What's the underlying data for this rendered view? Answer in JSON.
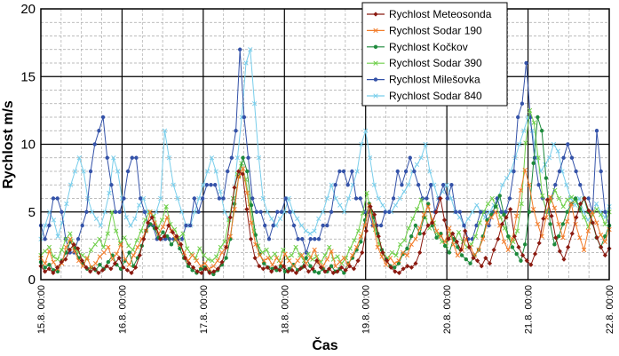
{
  "chart_data": {
    "type": "line",
    "xlabel": "Čas",
    "ylabel": "Rychlost  m/s",
    "ylim": [
      0,
      20
    ],
    "yticks": [
      "0",
      "5",
      "10",
      "15",
      "20"
    ],
    "xticks": [
      "15.8. 00:00",
      "16.8. 00:00",
      "17.8. 00:00",
      "18.8. 00:00",
      "19.8. 00:00",
      "20.8. 00:00",
      "21.8. 00:00",
      "22.8. 00:00"
    ],
    "grid": true,
    "legend_position": "top-right",
    "series": [
      {
        "name": "Rychlost Meteosonda",
        "color": "#8b1a10",
        "marker": "diamond",
        "values": [
          1,
          0.6,
          0.8,
          0.5,
          0.9,
          1.3,
          1.5,
          2.2,
          2.6,
          2.3,
          1.4,
          0.9,
          0.6,
          0.8,
          0.5,
          0.7,
          1,
          0.8,
          1.2,
          1.6,
          0.9,
          0.7,
          0.5,
          0.9,
          1.8,
          3,
          4.2,
          4.6,
          3.8,
          3,
          3.2,
          4,
          3.5,
          3.2,
          2.6,
          1.6,
          1.2,
          0.9,
          0.6,
          0.5,
          0.8,
          0.5,
          0.6,
          0.8,
          1.3,
          2.4,
          4.6,
          6.8,
          8,
          7.8,
          5.2,
          3,
          1.6,
          1,
          0.8,
          0.9,
          0.6,
          0.9,
          0.7,
          1,
          0.6,
          0.7,
          0.5,
          0.8,
          1,
          0.6,
          0.8,
          1.4,
          0.9,
          0.6,
          0.8,
          0.5,
          0.6,
          0.9,
          0.7,
          1,
          0.8,
          1.4,
          2,
          3.6,
          5.4,
          4.8,
          3.2,
          2,
          1.4,
          0.9,
          0.6,
          0.5,
          0.8,
          1,
          0.9,
          1.2,
          2,
          3.4,
          4,
          4.2,
          5,
          6,
          4.4,
          3,
          3.4,
          2.8,
          2.2,
          3.6,
          2.4,
          1.6,
          1.4,
          1,
          1.6,
          1.2,
          2.2,
          3,
          4.1,
          4.6,
          5.2,
          3.2,
          2.4,
          1.8,
          1.4,
          1.1,
          1.9,
          2.7,
          4.5,
          5.9,
          4.7,
          3.1,
          2.1,
          1.5,
          2.4,
          3.4,
          4.6,
          5.6,
          6,
          5.1,
          4.2,
          3.1,
          2.4,
          1.8,
          2.3
        ]
      },
      {
        "name": "Rychlost Sodar 190",
        "color": "#f27c2a",
        "marker": "x",
        "values": [
          1.6,
          1.2,
          2.1,
          1.3,
          0.8,
          1.2,
          2.4,
          3,
          2.1,
          1.4,
          1,
          1.6,
          0.9,
          1.2,
          1.7,
          2,
          2.4,
          1.5,
          1.9,
          2.6,
          1.5,
          1.1,
          1.8,
          2.4,
          3,
          3.6,
          5,
          4.2,
          3.4,
          3.9,
          4.6,
          3.6,
          3,
          2.6,
          2,
          1.4,
          1.8,
          1.4,
          1,
          1.2,
          0.8,
          1,
          1.4,
          2,
          2.4,
          3.2,
          5.2,
          7.6,
          8.2,
          6.4,
          4.2,
          2.6,
          1.8,
          1.4,
          1.6,
          1.1,
          1.6,
          1.2,
          1.9,
          1.4,
          1,
          1.4,
          1.8,
          1.2,
          1.6,
          2.2,
          1.3,
          1,
          1.5,
          2.1,
          1,
          1.3,
          1.6,
          1.1,
          1.8,
          2.4,
          3.2,
          4,
          5.5,
          4,
          2.4,
          1.7,
          1.1,
          1.6,
          1.2,
          1.4,
          2,
          1.8,
          2.6,
          3,
          3.8,
          4.8,
          5.4,
          4.4,
          3.6,
          3.2,
          2.8,
          3.8,
          2.6,
          1.8,
          2.2,
          3,
          2.4,
          1.8,
          2.2,
          3,
          4.2,
          4.6,
          5,
          4,
          2.8,
          2.2,
          3,
          4.7,
          6.6,
          8.1,
          7,
          5.2,
          4.1,
          3.2,
          4.6,
          6.1,
          5.3,
          4.1,
          3.1,
          4.3,
          5.6,
          4.1,
          3.1,
          2.2,
          3.6,
          5,
          4.2,
          3.3,
          2.8,
          3.7
        ]
      },
      {
        "name": "Rychlost Kočkov",
        "color": "#1e8a3c",
        "marker": "circle",
        "values": [
          1.3,
          0.9,
          1.1,
          0.7,
          0.6,
          1.4,
          2,
          2.8,
          2.3,
          1.6,
          1.2,
          0.8,
          0.9,
          0.7,
          1.1,
          0.8,
          1.3,
          1.8,
          1.1,
          0.8,
          1.4,
          2,
          1,
          1.6,
          2.5,
          3.6,
          4.1,
          3.8,
          3.1,
          3.5,
          3.2,
          2.6,
          3,
          2.3,
          1.6,
          1,
          0.7,
          0.5,
          0.8,
          0.9,
          0.6,
          0.4,
          0.7,
          1.1,
          1.6,
          3,
          5.6,
          7.6,
          9,
          8,
          5.5,
          3.3,
          1.9,
          1.2,
          0.9,
          0.8,
          0.7,
          1,
          0.6,
          0.8,
          1.1,
          0.7,
          0.9,
          1.6,
          1,
          0.6,
          0.5,
          0.8,
          0.6,
          1,
          0.6,
          0.8,
          0.5,
          1.2,
          1.6,
          2.2,
          2.8,
          4.4,
          5.6,
          4.6,
          3.4,
          2.2,
          1.5,
          1,
          0.9,
          1.2,
          1.9,
          2.3,
          3.2,
          4,
          3.4,
          4.6,
          5.6,
          4,
          3.1,
          3.4,
          2.5,
          2,
          3,
          2.4,
          1.8,
          1.5,
          1.2,
          1.8,
          2.2,
          3.2,
          4.4,
          4.8,
          5.4,
          6.2,
          4.8,
          3.2,
          2.4,
          1.9,
          1.4,
          2.6,
          5,
          8.6,
          12,
          11,
          7.5,
          4.1,
          2.6,
          3.2,
          4.1,
          5,
          5.6,
          6,
          5.2,
          6,
          5,
          4.2,
          3.1,
          2.4,
          3.2,
          4
        ]
      },
      {
        "name": "Rychlost Sodar 390",
        "color": "#6fcf4a",
        "marker": "x",
        "values": [
          1.8,
          2.1,
          2.4,
          1.7,
          1.5,
          2.2,
          3,
          3.4,
          2.5,
          2,
          1.8,
          1.5,
          2.2,
          2.6,
          3,
          2.4,
          3.4,
          5,
          3.6,
          2.7,
          3.1,
          2.5,
          2.2,
          2.9,
          3.6,
          4.4,
          5,
          4.7,
          3.8,
          4.4,
          5.4,
          4.1,
          3.7,
          3.1,
          3.4,
          2.3,
          1.9,
          1.6,
          2.3,
          1.8,
          1.5,
          1.4,
          1.7,
          2.4,
          2.8,
          4.4,
          6,
          7.8,
          8.6,
          7.4,
          5.6,
          3.6,
          2.5,
          2,
          2.2,
          1.6,
          1.9,
          1.4,
          2.2,
          1.6,
          1.8,
          2.4,
          1.8,
          1.4,
          1.9,
          1.5,
          1.7,
          1.3,
          1.8,
          2.4,
          1.5,
          1.7,
          1.2,
          1.6,
          2.3,
          2.9,
          3.6,
          4.9,
          6.4,
          5,
          3.7,
          2.6,
          1.9,
          1.6,
          2,
          1.8,
          2.6,
          2.9,
          3.8,
          4.5,
          5.2,
          5.9,
          4.6,
          3.8,
          4.2,
          3.3,
          2.8,
          2.5,
          3.4,
          2.9,
          3.5,
          2.8,
          2.4,
          2.6,
          3.2,
          4.2,
          5,
          5.6,
          6,
          5.4,
          4.6,
          3.8,
          3.1,
          2.8,
          3.6,
          5.6,
          10.1,
          12.5,
          11.6,
          9,
          6.2,
          5,
          5.8,
          6.6,
          6,
          5.4,
          5.9,
          6.1,
          5.8,
          5.2,
          4.6,
          3.9,
          4.8,
          5.2,
          4.8,
          4.1,
          5
        ]
      },
      {
        "name": "Rychlost Milešovka",
        "color": "#3452a8",
        "marker": "circle",
        "values": [
          4,
          3,
          4,
          6,
          6,
          5,
          3,
          2,
          2,
          3,
          4,
          5,
          8,
          10,
          11,
          12,
          9,
          7,
          5,
          5,
          6,
          8,
          9,
          9,
          6,
          5,
          4,
          4,
          3,
          3,
          3,
          3,
          3,
          3,
          3,
          4,
          4,
          6,
          5,
          6,
          7,
          7,
          7,
          6,
          6,
          8,
          9,
          11,
          17,
          12,
          9,
          6,
          5,
          5,
          4,
          3,
          4,
          5,
          5,
          6,
          5,
          4,
          3,
          3,
          2,
          3,
          3,
          3,
          4,
          4,
          5,
          7,
          8,
          8,
          7,
          8,
          6,
          6,
          5,
          5,
          4,
          4,
          4,
          5,
          5,
          6,
          8,
          7,
          8,
          9,
          8,
          7,
          6,
          6,
          7,
          5,
          6,
          7,
          6,
          7,
          5,
          5,
          4,
          3,
          3,
          4,
          5,
          5,
          4,
          5,
          6,
          5,
          5,
          6,
          8,
          12,
          13,
          16,
          12,
          9,
          7,
          6,
          5,
          6,
          7,
          8,
          9,
          10,
          9,
          8,
          7,
          6,
          6,
          5,
          11,
          8,
          5,
          4
        ]
      },
      {
        "name": "Rychlost Sodar 840",
        "color": "#79ceeb",
        "marker": "x",
        "values": [
          3,
          4,
          5,
          4.4,
          3.2,
          4.2,
          5.6,
          7,
          8,
          9,
          8,
          6,
          5,
          4.5,
          4,
          5,
          6.4,
          9,
          8,
          6,
          4.6,
          4,
          4.5,
          5.5,
          6,
          5,
          4.5,
          5,
          6,
          11,
          9,
          7,
          6,
          5,
          4,
          4,
          5,
          6,
          7,
          8,
          9,
          8,
          6.5,
          5,
          4.5,
          6,
          9,
          12,
          16,
          17,
          13,
          9,
          6,
          5,
          4.5,
          4,
          4.5,
          5,
          6,
          5,
          4.5,
          4,
          3.6,
          3.4,
          3.6,
          4.5,
          5,
          6,
          7,
          6,
          5.5,
          5,
          6,
          7,
          8,
          10,
          11,
          9,
          7,
          6,
          5.5,
          5,
          5,
          5.5,
          6,
          6.5,
          7,
          8,
          8.5,
          9,
          10,
          8,
          7,
          6,
          6.5,
          7,
          6,
          5,
          4.6,
          4,
          4.5,
          5,
          5.5,
          5,
          4.6,
          5,
          5.5,
          6,
          7,
          7.5,
          8,
          9,
          10,
          11,
          12,
          11,
          9,
          8,
          8.5,
          9,
          10,
          9.5,
          8,
          7,
          6,
          5.5,
          6,
          5,
          4.4,
          4.8,
          5.6,
          5,
          4.6,
          5.4
        ]
      }
    ]
  }
}
